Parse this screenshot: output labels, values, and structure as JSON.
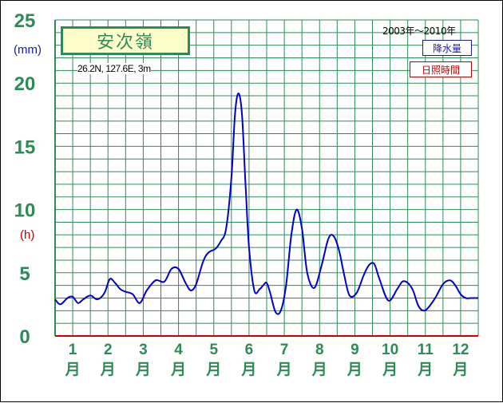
{
  "chart_data": {
    "type": "line",
    "station_label": "安次嶺",
    "location_text": "26.2N,  127.6E,  3m",
    "period_text": "2003年〜2010年",
    "y_unit_label": "(mm)",
    "y2_unit_label": "(h)",
    "ylim": [
      0,
      25
    ],
    "yticks": [
      "0",
      "5",
      "10",
      "15",
      "20",
      "25"
    ],
    "months": [
      "1",
      "2",
      "3",
      "4",
      "5",
      "6",
      "7",
      "8",
      "9",
      "10",
      "11",
      "12"
    ],
    "month_suffix": "月",
    "legend": [
      {
        "label": "降水量",
        "color": "#1a1aa8"
      },
      {
        "label": "日照時間",
        "color": "#c00000"
      }
    ],
    "series": [
      {
        "name": "降水量",
        "color": "#0000cc",
        "x": [
          0.0,
          0.15,
          0.35,
          0.5,
          0.65,
          0.8,
          1.0,
          1.2,
          1.4,
          1.55,
          1.7,
          1.85,
          2.0,
          2.2,
          2.4,
          2.6,
          2.85,
          3.1,
          3.3,
          3.5,
          3.7,
          3.85,
          4.0,
          4.2,
          4.35,
          4.55,
          4.7,
          4.85,
          5.0,
          5.1,
          5.2,
          5.3,
          5.4,
          5.5,
          5.65,
          5.8,
          5.9,
          6.0,
          6.1,
          6.25,
          6.4,
          6.55,
          6.7,
          6.85,
          7.0,
          7.15,
          7.35,
          7.55,
          7.75,
          7.9,
          8.05,
          8.2,
          8.35,
          8.55,
          8.75,
          8.9,
          9.05,
          9.2,
          9.45,
          9.7,
          9.85,
          10.0,
          10.15,
          10.3,
          10.45,
          10.6,
          10.8,
          11.0,
          11.2,
          11.35,
          11.5,
          11.65,
          11.8,
          11.95,
          12.0
        ],
        "y": [
          2.9,
          2.5,
          3.0,
          3.1,
          2.6,
          2.9,
          3.2,
          2.9,
          3.4,
          4.5,
          4.2,
          3.7,
          3.5,
          3.3,
          2.6,
          3.6,
          4.4,
          4.3,
          5.3,
          5.3,
          4.2,
          3.6,
          4.1,
          5.9,
          6.6,
          6.9,
          7.5,
          8.5,
          12.5,
          17.5,
          19.2,
          17.5,
          12.0,
          7.0,
          3.6,
          3.7,
          4.0,
          4.2,
          3.4,
          1.9,
          2.0,
          4.0,
          8.0,
          10.0,
          8.5,
          5.0,
          3.8,
          5.5,
          7.7,
          7.9,
          6.8,
          4.8,
          3.2,
          3.4,
          4.8,
          5.6,
          5.7,
          4.5,
          2.8,
          3.7,
          4.3,
          4.2,
          3.6,
          2.4,
          2.0,
          2.3,
          3.1,
          4.1,
          4.4,
          4.0,
          3.3,
          3.0,
          3.0,
          3.0,
          3.0
        ]
      }
    ]
  }
}
